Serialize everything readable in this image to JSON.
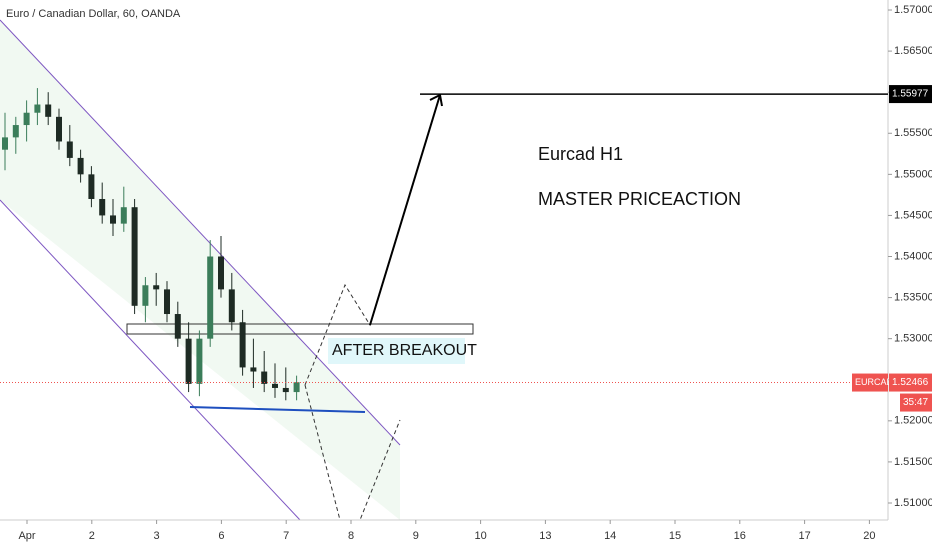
{
  "chart_data": {
    "type": "candlestick",
    "title": "Euro / Canadian Dollar, 60, OANDA",
    "symbol": "EURCAD",
    "countdown": "35:47",
    "last_price": 1.52466,
    "target_price": 1.55977,
    "annotations": [
      "Eurcad H1",
      "MASTER PRICEACTION",
      "AFTER BREAKOUT"
    ],
    "x_labels": [
      "Apr",
      "2",
      "3",
      "6",
      "7",
      "8",
      "9",
      "10",
      "13",
      "14",
      "15",
      "16",
      "17",
      "20"
    ],
    "open": [
      1.553,
      1.5545,
      1.556,
      1.5575,
      1.5585,
      1.557,
      1.554,
      1.552,
      1.55,
      1.547,
      1.545,
      1.544,
      1.546,
      1.534,
      1.5365,
      1.536,
      1.533,
      1.53,
      1.5245,
      1.53,
      1.54,
      1.536,
      1.532,
      1.5265,
      1.526,
      1.5245,
      1.524,
      1.5235
    ],
    "high": [
      1.5575,
      1.557,
      1.559,
      1.5605,
      1.56,
      1.558,
      1.556,
      1.553,
      1.551,
      1.549,
      1.547,
      1.5485,
      1.547,
      1.5375,
      1.538,
      1.537,
      1.5345,
      1.532,
      1.531,
      1.542,
      1.5425,
      1.538,
      1.5335,
      1.53,
      1.5285,
      1.527,
      1.5265,
      1.5255
    ],
    "low": [
      1.5505,
      1.5525,
      1.554,
      1.556,
      1.556,
      1.553,
      1.551,
      1.549,
      1.546,
      1.544,
      1.5425,
      1.543,
      1.533,
      1.532,
      1.534,
      1.532,
      1.529,
      1.5235,
      1.523,
      1.529,
      1.535,
      1.531,
      1.5255,
      1.524,
      1.5235,
      1.5228,
      1.5225,
      1.5225
    ],
    "close": [
      1.5545,
      1.556,
      1.5575,
      1.5585,
      1.557,
      1.554,
      1.552,
      1.55,
      1.547,
      1.545,
      1.544,
      1.546,
      1.534,
      1.5365,
      1.536,
      1.533,
      1.53,
      1.5245,
      1.53,
      1.54,
      1.536,
      1.532,
      1.5265,
      1.526,
      1.5245,
      1.524,
      1.5235,
      1.5247
    ],
    "up_color": "#3b7d5a",
    "down_color": "#1e2b24",
    "last_color": "#ef5350",
    "target_color": "#000000",
    "ylim": [
      1.50793,
      1.57122
    ],
    "yticks": [
      {
        "value": 1.51,
        "label": "1.51000"
      },
      {
        "value": 1.515,
        "label": "1.51500"
      },
      {
        "value": 1.52,
        "label": "1.52000"
      },
      {
        "value": 1.525,
        "label": "1.52500"
      },
      {
        "value": 1.53,
        "label": "1.53000"
      },
      {
        "value": 1.535,
        "label": "1.53500"
      },
      {
        "value": 1.54,
        "label": "1.54000"
      },
      {
        "value": 1.545,
        "label": "1.54500"
      },
      {
        "value": 1.55,
        "label": "1.55000"
      },
      {
        "value": 1.555,
        "label": "1.55500"
      },
      {
        "value": 1.56,
        "label": "1.56000"
      },
      {
        "value": 1.565,
        "label": "1.56500"
      },
      {
        "value": 1.57,
        "label": "1.57000"
      }
    ]
  }
}
